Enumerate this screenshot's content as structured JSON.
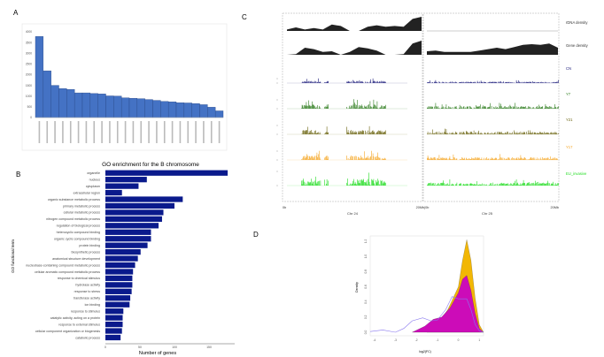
{
  "panels": {
    "a": "A",
    "b": "B",
    "c": "C",
    "d": "D"
  },
  "chart_data": [
    {
      "panel": "A",
      "type": "bar",
      "ylim": [
        0,
        4000
      ],
      "yticks": [
        0,
        500,
        1000,
        1500,
        2000,
        2500,
        3000,
        3500,
        4000
      ],
      "values": [
        3780,
        2180,
        1500,
        1350,
        1310,
        1150,
        1150,
        1120,
        1100,
        1010,
        1000,
        920,
        900,
        880,
        840,
        800,
        750,
        730,
        690,
        680,
        650,
        600,
        480,
        310
      ],
      "color": "#4472C4",
      "grid": false
    },
    {
      "panel": "B",
      "type": "bar",
      "orientation": "horizontal",
      "title": "GO enrichment for the B chromosome",
      "xlabel": "Number of genes",
      "ylabel": "GO functional term",
      "xlim": [
        0,
        185
      ],
      "xticks": [
        0,
        50,
        100,
        150
      ],
      "color": "#0a1a8c",
      "categories": [
        "organelle",
        "nucleus",
        "cytoplasm",
        "extracellular region",
        "organic substance metabolic process",
        "primary metabolic process",
        "cellular metabolic process",
        "nitrogen compound metabolic process",
        "regulation of biological process",
        "heterocyclic compound binding",
        "organic cyclic compound binding",
        "protein binding",
        "biosynthetic process",
        "anatomical structure development",
        "nucleobase-containing compound metabolic process",
        "cellular aromatic compound metabolic process",
        "response to chemical stimulus",
        "hydrolase activity",
        "response to stress",
        "transferase activity",
        "ion binding",
        "response to stimulus",
        "catalytic activity, acting on a protein",
        "response to external stimulus",
        "cellular component organization or biogenesis",
        "catabolic process"
      ],
      "values": [
        177,
        60,
        48,
        24,
        112,
        100,
        84,
        82,
        77,
        66,
        66,
        61,
        51,
        47,
        43,
        40,
        39,
        39,
        38,
        36,
        35,
        26,
        25,
        25,
        24,
        22
      ]
    },
    {
      "panel": "C",
      "type": "area",
      "tracks": [
        {
          "name": "rDNA density",
          "color": "#222222"
        },
        {
          "name": "Gene density",
          "color": "#222222"
        },
        {
          "name": "CN",
          "color": "#1a1a7a"
        },
        {
          "name": "Y7",
          "color": "#2e7d1e"
        },
        {
          "name": "Y21",
          "color": "#6b6410"
        },
        {
          "name": "Y17",
          "color": "#f5a623"
        },
        {
          "name": "EU_invasive",
          "color": "#22dd22"
        }
      ],
      "chromosomes": [
        "Chr 24",
        "Chr 25"
      ],
      "xtick_labels": [
        "0b",
        "20Mb|0b",
        "20Mb"
      ]
    },
    {
      "panel": "D",
      "type": "area",
      "xlabel": "log2(FC)",
      "ylabel": "Density",
      "xlim": [
        -4.2,
        1.2
      ],
      "ylim": [
        0,
        1.25
      ],
      "xticks": [
        -4,
        -3,
        -2,
        -1,
        0,
        1
      ],
      "yticks": [
        0.0,
        0.2,
        0.4,
        0.6,
        0.8,
        1.0,
        1.2
      ],
      "series": [
        {
          "color": "#f2b705",
          "fill": true,
          "x": [
            -1.5,
            -1.0,
            -0.5,
            0.0,
            0.2,
            0.4,
            0.6,
            0.8,
            1.0,
            1.2
          ],
          "y": [
            0.0,
            0.1,
            0.3,
            0.6,
            0.95,
            1.22,
            0.95,
            0.45,
            0.1,
            0.0
          ]
        },
        {
          "color": "#cc0cb8",
          "fill": true,
          "x": [
            -2.2,
            -1.6,
            -1.2,
            -0.8,
            -0.4,
            0.0,
            0.2,
            0.4,
            0.6,
            0.8,
            1.0,
            1.2
          ],
          "y": [
            0.0,
            0.08,
            0.17,
            0.2,
            0.32,
            0.52,
            0.7,
            0.75,
            0.55,
            0.25,
            0.05,
            0.0
          ]
        },
        {
          "color": "#8877ee",
          "fill": false,
          "x": [
            -4.2,
            -3.6,
            -3.0,
            -2.6,
            -2.2,
            -1.7,
            -1.3,
            -1.0,
            -0.6,
            -0.3,
            0.0,
            0.4,
            0.6,
            0.8,
            1.0,
            1.2
          ],
          "y": [
            0.01,
            0.03,
            0.0,
            0.05,
            0.15,
            0.19,
            0.15,
            0.16,
            0.3,
            0.47,
            0.44,
            0.44,
            0.3,
            0.1,
            0.02,
            0.0
          ]
        }
      ]
    }
  ]
}
